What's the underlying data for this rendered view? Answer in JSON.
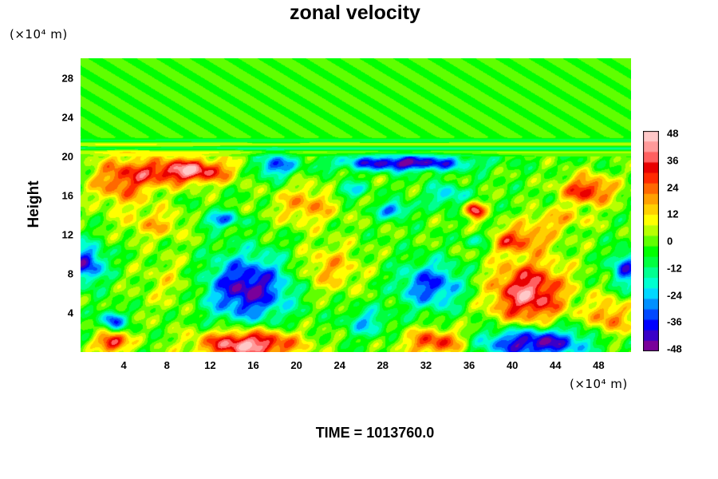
{
  "header": {
    "title": "zonal velocity"
  },
  "footer": {
    "time_label": "TIME = 1013760.0"
  },
  "chart_data": {
    "type": "heatmap",
    "title": "zonal velocity",
    "xlabel": "",
    "ylabel": "Height",
    "x_unit_label": "(×10⁴ m)",
    "y_unit_label": "(×10⁴ m)",
    "xlim": [
      0,
      51
    ],
    "ylim": [
      0,
      30
    ],
    "xticks": [
      4,
      8,
      12,
      16,
      20,
      24,
      28,
      32,
      36,
      40,
      44,
      48
    ],
    "yticks": [
      4,
      8,
      12,
      16,
      20,
      24,
      28
    ],
    "colorbar": {
      "range": [
        -48,
        48
      ],
      "ticks": [
        48,
        36,
        24,
        12,
        0,
        -12,
        -24,
        -36,
        -48
      ],
      "colors": [
        "#7a009a",
        "#3a00c8",
        "#0000ff",
        "#0048ff",
        "#0090ff",
        "#00d8ff",
        "#00ffd0",
        "#00ff90",
        "#00ff40",
        "#00ff00",
        "#60ff00",
        "#b8ff00",
        "#ffff00",
        "#ffd000",
        "#ffa000",
        "#ff6800",
        "#ff2a00",
        "#e80000",
        "#ff6060",
        "#ff9a9a",
        "#ffc8c8"
      ]
    },
    "background_value": -2,
    "stratosphere_layer": {
      "bands": [
        {
          "y": 21.6,
          "value": -9
        },
        {
          "y": 21.2,
          "value": 8
        },
        {
          "y": 20.8,
          "value": -11
        },
        {
          "y": 20.4,
          "value": 6
        }
      ]
    },
    "features": [
      {
        "x": 15.5,
        "y": 6.5,
        "amplitude": -42,
        "radius_x": 4.0,
        "radius_y": 3.4
      },
      {
        "x": 32.5,
        "y": 6.8,
        "amplitude": -32,
        "radius_x": 3.0,
        "radius_y": 2.4
      },
      {
        "x": 41.5,
        "y": 6.0,
        "amplitude": 42,
        "radius_x": 3.5,
        "radius_y": 3.4
      },
      {
        "x": 15.5,
        "y": 0.8,
        "amplitude": 48,
        "radius_x": 4.5,
        "radius_y": 1.5
      },
      {
        "x": 42.0,
        "y": 1.0,
        "amplitude": -46,
        "radius_x": 5.0,
        "radius_y": 1.6
      },
      {
        "x": 3.0,
        "y": 1.0,
        "amplitude": 42,
        "radius_x": 1.4,
        "radius_y": 1.0
      },
      {
        "x": 3.0,
        "y": 3.2,
        "amplitude": -34,
        "radius_x": 1.0,
        "radius_y": 1.0
      },
      {
        "x": 0.5,
        "y": 9.0,
        "amplitude": -36,
        "radius_x": 1.8,
        "radius_y": 2.0
      },
      {
        "x": 50.5,
        "y": 8.5,
        "amplitude": -32,
        "radius_x": 1.4,
        "radius_y": 1.8
      },
      {
        "x": 10.0,
        "y": 18.5,
        "amplitude": 44,
        "radius_x": 4.0,
        "radius_y": 1.3
      },
      {
        "x": 4.0,
        "y": 17.5,
        "amplitude": 28,
        "radius_x": 3.0,
        "radius_y": 2.5
      },
      {
        "x": 30.0,
        "y": 19.3,
        "amplitude": -44,
        "radius_x": 6.0,
        "radius_y": 0.8
      },
      {
        "x": 18.0,
        "y": 19.0,
        "amplitude": -32,
        "radius_x": 1.8,
        "radius_y": 1.2
      },
      {
        "x": 36.5,
        "y": 14.5,
        "amplitude": 40,
        "radius_x": 0.9,
        "radius_y": 0.9
      },
      {
        "x": 13.0,
        "y": 13.5,
        "amplitude": -28,
        "radius_x": 1.8,
        "radius_y": 0.8
      },
      {
        "x": 29.0,
        "y": 14.5,
        "amplitude": -30,
        "radius_x": 1.5,
        "radius_y": 0.8
      },
      {
        "x": 47.0,
        "y": 16.5,
        "amplitude": 34,
        "radius_x": 2.5,
        "radius_y": 1.5
      },
      {
        "x": 40.0,
        "y": 11.5,
        "amplitude": 28,
        "radius_x": 3.5,
        "radius_y": 1.2
      },
      {
        "x": 37.0,
        "y": 11.5,
        "amplitude": -28,
        "radius_x": 1.5,
        "radius_y": 0.8
      },
      {
        "x": 23.0,
        "y": 8.5,
        "amplitude": 18,
        "radius_x": 3.0,
        "radius_y": 2.5
      },
      {
        "x": 8.5,
        "y": 7.0,
        "amplitude": 10,
        "radius_x": 3.0,
        "radius_y": 3.0
      },
      {
        "x": 33.0,
        "y": 1.0,
        "amplitude": 32,
        "radius_x": 3.0,
        "radius_y": 1.4
      },
      {
        "x": 21.0,
        "y": 15.0,
        "amplitude": 20,
        "radius_x": 3.0,
        "radius_y": 2.0
      },
      {
        "x": 25.0,
        "y": 16.5,
        "amplitude": -22,
        "radius_x": 1.5,
        "radius_y": 0.8
      },
      {
        "x": 34.0,
        "y": 16.0,
        "amplitude": -20,
        "radius_x": 2.0,
        "radius_y": 1.2
      },
      {
        "x": 49.0,
        "y": 3.5,
        "amplitude": 24,
        "radius_x": 2.0,
        "radius_y": 2.0
      },
      {
        "x": 26.5,
        "y": 3.0,
        "amplitude": -20,
        "radius_x": 2.0,
        "radius_y": 1.5
      },
      {
        "x": 7.0,
        "y": 13.0,
        "amplitude": 16,
        "radius_x": 3.0,
        "radius_y": 1.5
      },
      {
        "x": 44.0,
        "y": 13.5,
        "amplitude": 18,
        "radius_x": 3.0,
        "radius_y": 1.0
      }
    ]
  }
}
